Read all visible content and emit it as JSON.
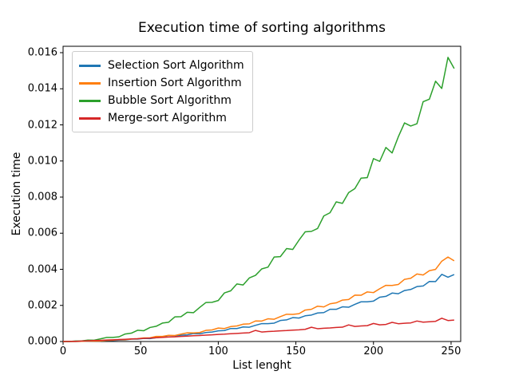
{
  "figure": {
    "background": "#ffffff",
    "frame_color": "#000000"
  },
  "chart_data": {
    "type": "line",
    "title": "Execution time of sorting algorithms",
    "xlabel": "List lenght",
    "ylabel": "Execution time",
    "grid": false,
    "legend_position": "upper left",
    "xlim": [
      0,
      256.2
    ],
    "ylim": [
      0,
      0.016354
    ],
    "xticks": [
      0,
      50,
      100,
      150,
      200,
      250
    ],
    "xtick_labels": [
      "0",
      "50",
      "100",
      "150",
      "200",
      "250"
    ],
    "yticks": [
      0,
      0.002,
      0.004,
      0.006,
      0.008,
      0.01,
      0.012,
      0.014,
      0.016
    ],
    "ytick_labels": [
      "0.000",
      "0.002",
      "0.004",
      "0.006",
      "0.008",
      "0.010",
      "0.012",
      "0.014",
      "0.016"
    ],
    "x": [
      0,
      4,
      8,
      12,
      16,
      20,
      24,
      28,
      32,
      36,
      40,
      44,
      48,
      52,
      56,
      60,
      64,
      68,
      72,
      76,
      80,
      84,
      88,
      92,
      96,
      100,
      104,
      108,
      112,
      116,
      120,
      124,
      128,
      132,
      136,
      140,
      144,
      148,
      152,
      156,
      160,
      164,
      168,
      172,
      176,
      180,
      184,
      188,
      192,
      196,
      200,
      204,
      208,
      212,
      216,
      220,
      224,
      228,
      232,
      236,
      240,
      244,
      248,
      252
    ],
    "series": [
      {
        "name": "Selection Sort Algorithm",
        "color": "#1f77b4",
        "values": [
          0,
          1e-06,
          1e-06,
          1.1e-05,
          1.4e-05,
          3e-05,
          2.7e-05,
          4.8e-05,
          5.6e-05,
          8e-05,
          8.5e-05,
          0.00013,
          0.00013,
          0.000169,
          0.000162,
          0.000211,
          0.000258,
          0.000257,
          0.000272,
          0.00035,
          0.000368,
          0.000439,
          0.000425,
          0.000498,
          0.000523,
          0.000592,
          0.000607,
          0.00072,
          0.000719,
          0.000808,
          0.000792,
          0.000897,
          0.000991,
          0.00099,
          0.001018,
          0.001165,
          0.001197,
          0.001324,
          0.001298,
          0.001424,
          0.001466,
          0.00158,
          0.001603,
          0.001785,
          0.001782,
          0.001922,
          0.001898,
          0.002058,
          0.002199,
          0.002197,
          0.00224,
          0.002455,
          0.002501,
          0.002683,
          0.002646,
          0.002825,
          0.002883,
          0.003042,
          0.003075,
          0.003325,
          0.003322,
          0.00372,
          0.00356,
          0.00371
        ]
      },
      {
        "name": "Insertion Sort Algorithm",
        "color": "#ff7f0e",
        "values": [
          0,
          2e-06,
          1e-06,
          1.1e-05,
          2.4e-05,
          2.4e-05,
          2.8e-05,
          6.2e-05,
          7e-05,
          0.000107,
          9.8e-05,
          0.00014,
          0.000154,
          0.000197,
          0.000206,
          0.000282,
          0.00028,
          0.000344,
          0.000331,
          0.000408,
          0.00048,
          0.000477,
          0.000498,
          0.000616,
          0.00064,
          0.000745,
          0.000721,
          0.000827,
          0.000861,
          0.000959,
          0.000978,
          0.001138,
          0.001134,
          0.001259,
          0.001234,
          0.001379,
          0.001509,
          0.001504,
          0.001541,
          0.001743,
          0.001784,
          0.001957,
          0.001917,
          0.002088,
          0.002142,
          0.002295,
          0.002324,
          0.002568,
          0.002561,
          0.002748,
          0.00271,
          0.002923,
          0.003112,
          0.003104,
          0.003158,
          0.003443,
          0.003501,
          0.003742,
          0.003687,
          0.003922,
          0.003996,
          0.00445,
          0.00468,
          0.00447
        ]
      },
      {
        "name": "Bubble Sort Algorithm",
        "color": "#2ca02c",
        "values": [
          0,
          1e-06,
          2.8e-05,
          3.1e-05,
          7.6e-05,
          7e-05,
          0.000143,
          0.000224,
          0.000229,
          0.00026,
          0.000417,
          0.000462,
          0.000623,
          0.000599,
          0.000776,
          0.000844,
          0.00102,
          0.001068,
          0.001363,
          0.001375,
          0.001621,
          0.001595,
          0.001887,
          0.002158,
          0.002172,
          0.00227,
          0.002695,
          0.002807,
          0.003187,
          0.003134,
          0.003521,
          0.003665,
          0.004023,
          0.004118,
          0.00468,
          0.004701,
          0.005148,
          0.005101,
          0.005614,
          0.006076,
          0.006099,
          0.006263,
          0.006956,
          0.007133,
          0.007734,
          0.007652,
          0.008248,
          0.008468,
          0.009051,
          0.009076,
          0.01013,
          0.009978,
          0.010749,
          0.010446,
          0.011338,
          0.012107,
          0.011938,
          0.012064,
          0.013283,
          0.013421,
          0.01442,
          0.014018,
          0.01574,
          0.01512
        ]
      },
      {
        "name": "Merge-sort Algorithm",
        "color": "#d62728",
        "values": [
          0,
          5e-06,
          1.3e-05,
          2.7e-05,
          3.7e-05,
          5.3e-05,
          6.3e-05,
          8.1e-05,
          9.3e-05,
          0.000112,
          0.000124,
          0.000144,
          0.000156,
          0.000177,
          0.00019,
          0.000211,
          0.000225,
          0.000246,
          0.00026,
          0.000282,
          0.000296,
          0.000319,
          0.000333,
          0.000356,
          0.000371,
          0.000394,
          0.000409,
          0.000432,
          0.000448,
          0.000471,
          0.000487,
          0.000615,
          0.000527,
          0.000551,
          0.000567,
          0.000591,
          0.000607,
          0.000632,
          0.000648,
          0.000673,
          0.00079,
          0.00071,
          0.000735,
          0.000752,
          0.000777,
          0.000794,
          0.00092,
          0.000836,
          0.000861,
          0.000879,
          0.001,
          0.000921,
          0.000947,
          0.00106,
          0.000986,
          0.001012,
          0.00103,
          0.001135,
          0.001074,
          0.001096,
          0.001118,
          0.00129,
          0.001162,
          0.00119
        ]
      }
    ]
  }
}
